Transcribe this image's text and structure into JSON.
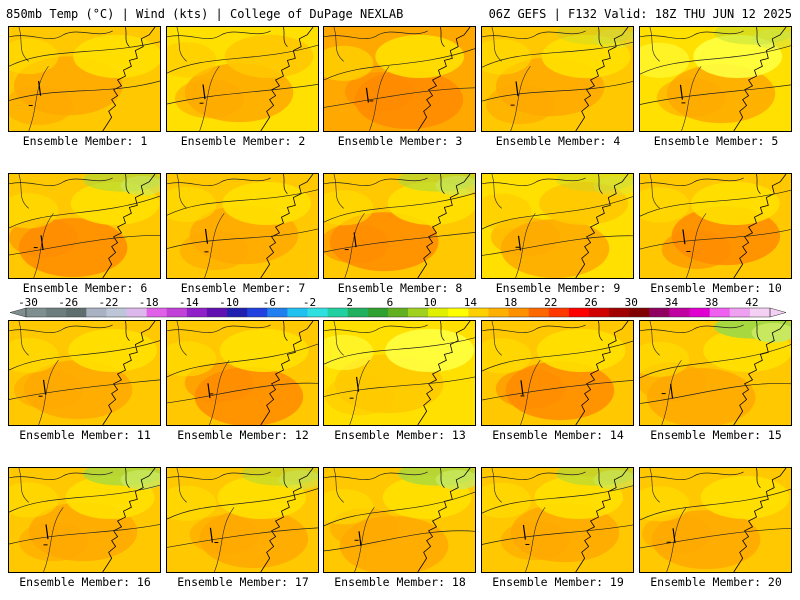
{
  "header": {
    "left": "850mb Temp (°C) | Wind (kts) | College of DuPage NEXLAB",
    "right": "06Z GEFS | F132 Valid: 18Z THU JUN 12 2025"
  },
  "members": [
    {
      "label": "Ensemble Member: 1"
    },
    {
      "label": "Ensemble Member: 2"
    },
    {
      "label": "Ensemble Member: 3"
    },
    {
      "label": "Ensemble Member: 4"
    },
    {
      "label": "Ensemble Member: 5"
    },
    {
      "label": "Ensemble Member: 6"
    },
    {
      "label": "Ensemble Member: 7"
    },
    {
      "label": "Ensemble Member: 8"
    },
    {
      "label": "Ensemble Member: 9"
    },
    {
      "label": "Ensemble Member: 10"
    },
    {
      "label": "Ensemble Member: 11"
    },
    {
      "label": "Ensemble Member: 12"
    },
    {
      "label": "Ensemble Member: 13"
    },
    {
      "label": "Ensemble Member: 14"
    },
    {
      "label": "Ensemble Member: 15"
    },
    {
      "label": "Ensemble Member: 16"
    },
    {
      "label": "Ensemble Member: 17"
    },
    {
      "label": "Ensemble Member: 18"
    },
    {
      "label": "Ensemble Member: 19"
    },
    {
      "label": "Ensemble Member: 20"
    }
  ],
  "colorbar": {
    "labels": [
      "-30",
      "-26",
      "-22",
      "-18",
      "-14",
      "-10",
      "-6",
      "-2",
      "2",
      "6",
      "10",
      "14",
      "18",
      "22",
      "26",
      "30",
      "34",
      "38",
      "42"
    ],
    "colors": [
      "#7f8f8f",
      "#6e7e7e",
      "#5f6f6f",
      "#a9b2c2",
      "#bcc6d8",
      "#dcb8ec",
      "#e060e8",
      "#c040d8",
      "#9020c8",
      "#6010b0",
      "#2020b0",
      "#2040e0",
      "#2080f0",
      "#20c0f0",
      "#30e0e0",
      "#20d0a0",
      "#20b060",
      "#30a030",
      "#60b020",
      "#a0d020",
      "#e0f000",
      "#ffff00",
      "#ffd000",
      "#ffb000",
      "#ff9000",
      "#ff6800",
      "#ff3800",
      "#ff0000",
      "#d00000",
      "#a00000",
      "#800000",
      "#900060",
      "#c000a0",
      "#e000d0",
      "#f060f0",
      "#f0a0f0",
      "#f4d0f4"
    ]
  },
  "palette": {
    "pale_yellow": "#ffff40",
    "yellow": "#ffe000",
    "gold": "#ffc800",
    "orange": "#ffa800",
    "dark_orange": "#ff8a00",
    "green": "#a8d840",
    "light_green": "#c8e860"
  }
}
